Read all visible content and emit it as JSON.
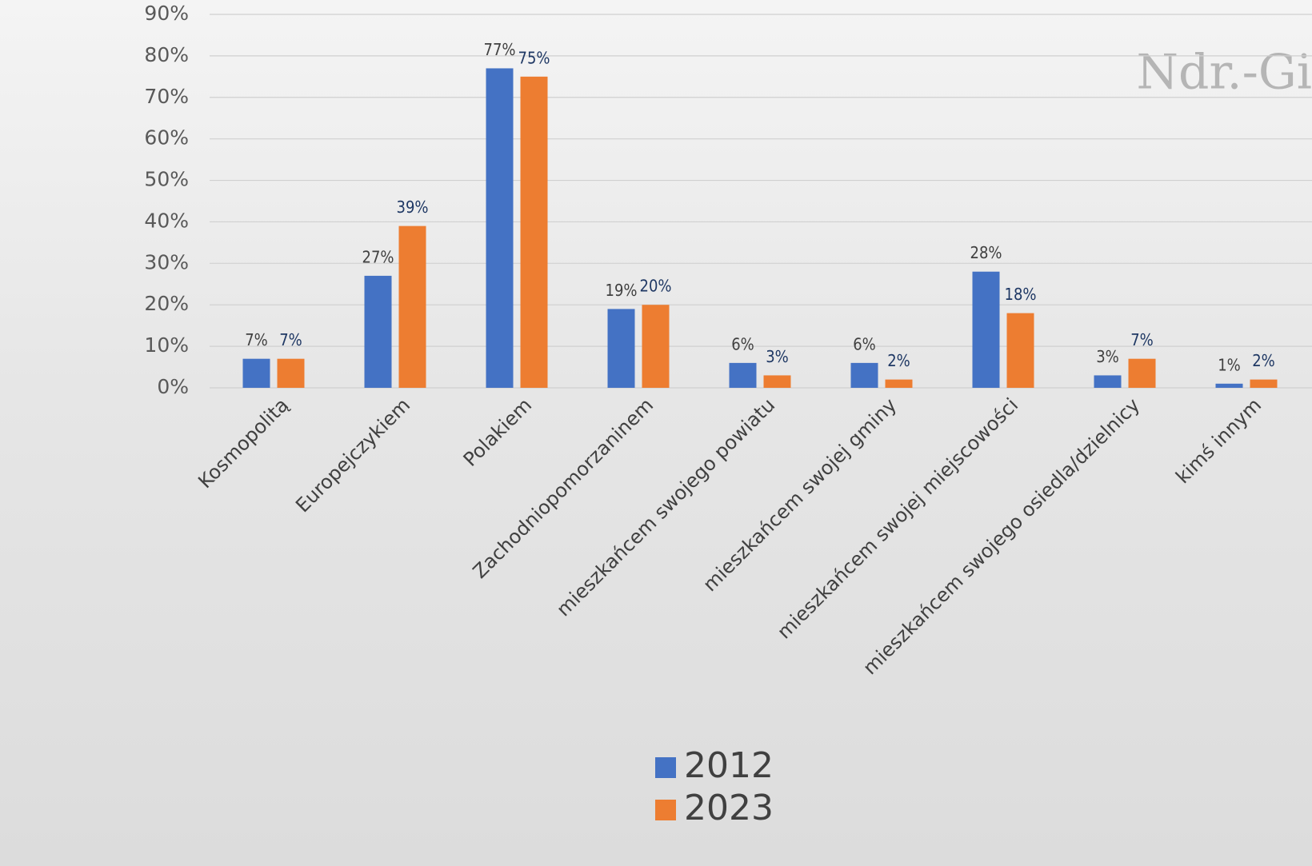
{
  "chart_data": {
    "type": "bar",
    "watermark": "Ndr.-Gi",
    "categories": [
      "Kosmopolitą",
      "Europejczykiem",
      "Polakiem",
      "Zachodniopomorzaninem",
      "mieszkańcem swojego powiatu",
      "mieszkańcem swojej gminy",
      "mieszkańcem swojej miejscowości",
      "mieszkańcem swojego osiedla/dzielnicy",
      "kimś innym"
    ],
    "series": [
      {
        "name": "2012",
        "color": "#4472c4",
        "label_color": "#404040",
        "values": [
          7,
          27,
          77,
          19,
          6,
          6,
          28,
          3,
          1
        ],
        "value_labels": [
          "7%",
          "27%",
          "77%",
          "19%",
          "6%",
          "6%",
          "28%",
          "3%",
          "1%"
        ]
      },
      {
        "name": "2023",
        "color": "#ed7d31",
        "label_color": "#1f3864",
        "values": [
          7,
          39,
          75,
          20,
          3,
          2,
          18,
          7,
          2
        ],
        "value_labels": [
          "7%",
          "39%",
          "75%",
          "20%",
          "3%",
          "2%",
          "18%",
          "7%",
          "2%"
        ]
      }
    ],
    "ylim": [
      0,
      90
    ],
    "yticks": [
      {
        "value": 0,
        "label": "0%"
      },
      {
        "value": 10,
        "label": "10%"
      },
      {
        "value": 20,
        "label": "20%"
      },
      {
        "value": 30,
        "label": "30%"
      },
      {
        "value": 40,
        "label": "40%"
      },
      {
        "value": 50,
        "label": "50%"
      },
      {
        "value": 60,
        "label": "60%"
      },
      {
        "value": 70,
        "label": "70%"
      },
      {
        "value": 80,
        "label": "80%"
      },
      {
        "value": 90,
        "label": "90%"
      }
    ],
    "grid": true,
    "legend": "bottom"
  }
}
